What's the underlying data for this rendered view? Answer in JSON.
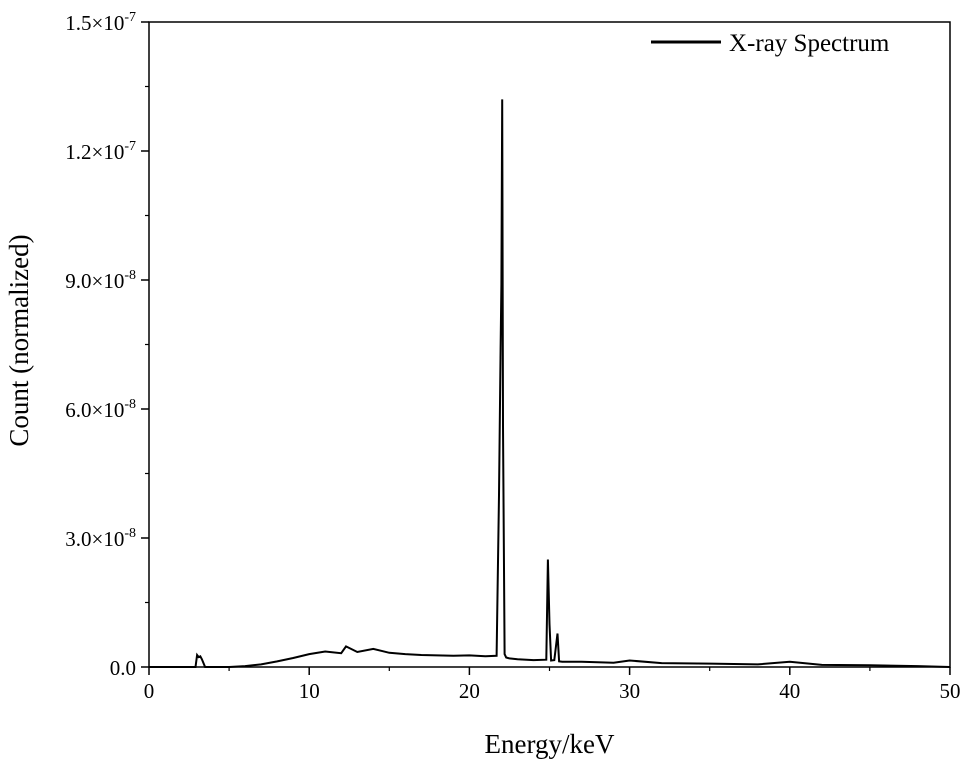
{
  "chart_data": {
    "type": "line",
    "title": "",
    "xlabel": "Energy/keV",
    "ylabel": "Count (normalized)",
    "xlim": [
      0,
      50
    ],
    "ylim": [
      0,
      1.5e-07
    ],
    "grid": false,
    "legend_position": "top-right",
    "x_ticks": [
      {
        "value": 0,
        "label": "0"
      },
      {
        "value": 10,
        "label": "10"
      },
      {
        "value": 20,
        "label": "20"
      },
      {
        "value": 30,
        "label": "30"
      },
      {
        "value": 40,
        "label": "40"
      },
      {
        "value": 50,
        "label": "50"
      }
    ],
    "y_ticks": [
      {
        "value": 0,
        "mantissa": "0.0",
        "exponent": ""
      },
      {
        "value": 3e-08,
        "mantissa": "3.0×10",
        "exponent": "-8"
      },
      {
        "value": 6e-08,
        "mantissa": "6.0×10",
        "exponent": "-8"
      },
      {
        "value": 9e-08,
        "mantissa": "9.0×10",
        "exponent": "-8"
      },
      {
        "value": 1.2e-07,
        "mantissa": "1.2×10",
        "exponent": "-7"
      },
      {
        "value": 1.5e-07,
        "mantissa": "1.5×10",
        "exponent": "-7"
      }
    ],
    "series": [
      {
        "name": "X-ray Spectrum",
        "color": "#000000",
        "x": [
          0,
          2.9,
          3.0,
          3.1,
          3.2,
          3.3,
          3.5,
          5.0,
          6.0,
          7.0,
          8.0,
          9.0,
          10.0,
          11.0,
          12.0,
          12.3,
          13.0,
          14.0,
          15.0,
          16.0,
          17.0,
          18.0,
          19.0,
          20.0,
          21.0,
          21.7,
          21.85,
          21.95,
          22.0,
          22.05,
          22.1,
          22.2,
          22.3,
          22.5,
          23.0,
          24.0,
          24.8,
          24.9,
          25.0,
          25.1,
          25.3,
          25.5,
          25.6,
          25.8,
          27.0,
          29.0,
          30.0,
          32.0,
          35.0,
          38.0,
          40.0,
          42.0,
          45.0,
          48.0,
          50.0
        ],
        "y": [
          0,
          0,
          2.8e-09,
          2.3e-09,
          2.5e-09,
          1.8e-09,
          0,
          0,
          2e-10,
          6e-10,
          1.3e-09,
          2.1e-09,
          3e-09,
          3.6e-09,
          3.2e-09,
          4.8e-09,
          3.5e-09,
          4.2e-09,
          3.3e-09,
          3e-09,
          2.8e-09,
          2.7e-09,
          2.6e-09,
          2.7e-09,
          2.5e-09,
          2.6e-09,
          4e-08,
          7.4e-08,
          8.9e-08,
          1.32e-07,
          5.6e-08,
          3e-09,
          2.2e-09,
          2e-09,
          1.8e-09,
          1.6e-09,
          1.7e-09,
          2.5e-08,
          1e-08,
          1.5e-09,
          1.6e-09,
          7.8e-09,
          1.3e-09,
          1.2e-09,
          1.2e-09,
          1e-09,
          1.5e-09,
          9e-10,
          8e-10,
          6e-10,
          1.2e-09,
          5e-10,
          4e-10,
          2e-10,
          0
        ]
      }
    ]
  }
}
